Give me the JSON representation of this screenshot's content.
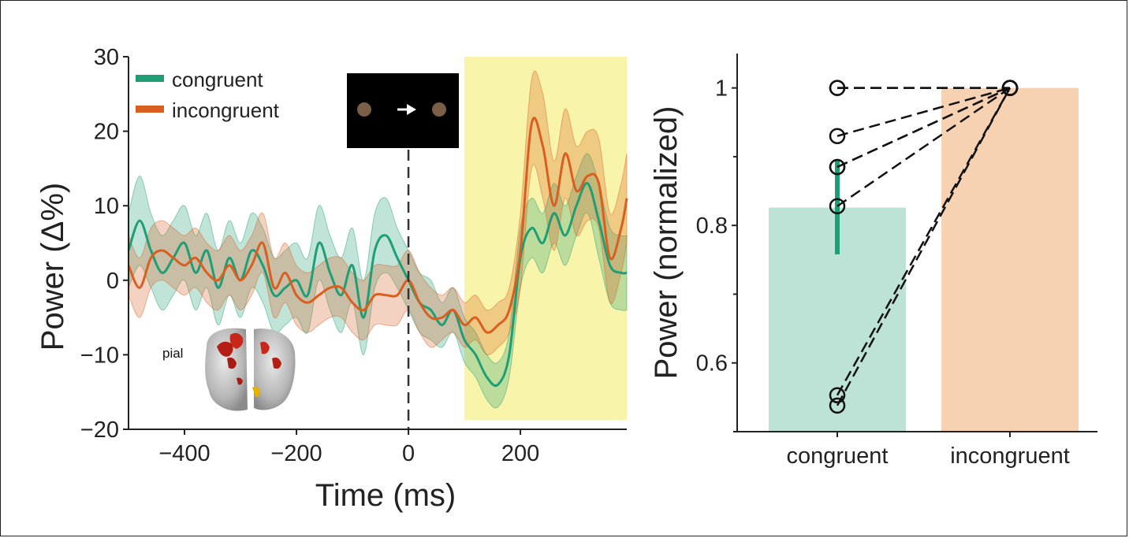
{
  "colors": {
    "congruent": "#1f9e76",
    "incongruent": "#d95f20",
    "congruent_bar": "#bde3d6",
    "incongruent_bar": "#f6d1b2",
    "highlight": "#f8f4aa"
  },
  "chart_data": [
    {
      "type": "line",
      "xlabel": "Time (ms)",
      "ylabel": "Power (Δ%)",
      "xlim": [
        -500,
        390
      ],
      "ylim": [
        -20,
        30
      ],
      "x_ticks": [
        -400,
        -200,
        0,
        200
      ],
      "x_tick_labels": [
        "−400",
        "−200",
        "0",
        "200"
      ],
      "y_ticks": [
        -20,
        -10,
        0,
        10,
        20,
        30
      ],
      "y_tick_labels": [
        "−20",
        "−10",
        "0",
        "10",
        "20",
        "30"
      ],
      "legend": "top-left",
      "shaded_window_ms": [
        100,
        390
      ],
      "stimulus_onset_ms": 0,
      "inset_stimulus_icon": "two-dots-arrow-icon",
      "inset_brain_label": "pial",
      "x": [
        -500,
        -480,
        -460,
        -440,
        -420,
        -400,
        -380,
        -360,
        -340,
        -320,
        -300,
        -280,
        -260,
        -240,
        -220,
        -200,
        -180,
        -160,
        -140,
        -120,
        -100,
        -80,
        -60,
        -40,
        -20,
        0,
        20,
        40,
        60,
        80,
        100,
        120,
        140,
        160,
        180,
        200,
        220,
        240,
        260,
        280,
        300,
        320,
        340,
        360,
        380,
        390
      ],
      "series": [
        {
          "name": "congruent",
          "values": [
            4,
            8,
            4,
            1,
            3,
            5,
            1,
            4,
            -1,
            3,
            0,
            4,
            2,
            -2,
            -1,
            0,
            -2,
            5,
            1,
            -2,
            2,
            -5,
            4,
            6,
            3,
            0,
            -3,
            -4,
            -6,
            -4,
            -8,
            -10,
            -13,
            -14,
            -10,
            3,
            7,
            5,
            9,
            6,
            10,
            13,
            8,
            2,
            1,
            1
          ],
          "ci": [
            5,
            6,
            5,
            5,
            5,
            5,
            5,
            5,
            5,
            5,
            5,
            5,
            5,
            5,
            5,
            5,
            5,
            5,
            5,
            5,
            5,
            5,
            5,
            5,
            4,
            4,
            4,
            4,
            3,
            3,
            3,
            3,
            3,
            3,
            3,
            4,
            4,
            4,
            4,
            4,
            4,
            4,
            5,
            5,
            5,
            5
          ]
        },
        {
          "name": "incongruent",
          "values": [
            2,
            -1,
            3,
            4,
            3,
            2,
            3,
            1,
            0,
            2,
            0,
            2,
            5,
            -1,
            1,
            -2,
            -3,
            -2,
            -1,
            -1,
            -3,
            -4,
            -2,
            -2,
            -2,
            0,
            -3,
            -5,
            -5,
            -4,
            -6,
            -5,
            -7,
            -6,
            -4,
            4,
            21,
            18,
            10,
            17,
            12,
            14,
            13,
            3,
            7,
            11
          ],
          "ci": [
            4,
            4,
            4,
            4,
            4,
            4,
            4,
            4,
            4,
            4,
            4,
            4,
            4,
            4,
            4,
            4,
            4,
            4,
            4,
            4,
            4,
            4,
            4,
            4,
            4,
            4,
            4,
            4,
            3,
            3,
            3,
            3,
            3,
            3,
            3,
            5,
            6,
            7,
            6,
            6,
            6,
            6,
            6,
            6,
            6,
            6
          ]
        }
      ]
    },
    {
      "type": "bar",
      "ylabel": "Power (normalized)",
      "categories": [
        "congruent",
        "incongruent"
      ],
      "values": [
        0.826,
        1.0
      ],
      "error": [
        0.068,
        0
      ],
      "ylim": [
        0.5,
        1.05
      ],
      "y_ticks": [
        0.6,
        0.8,
        1.0
      ],
      "y_tick_labels": [
        "0.6",
        "0.8",
        "1"
      ],
      "y_minor_ticks": [
        0.5,
        0.7,
        0.9
      ],
      "paired_points": {
        "congruent": [
          1.0,
          1.0,
          0.93,
          0.885,
          0.885,
          0.828,
          0.553,
          0.538
        ],
        "incongruent": [
          1.0,
          1.0,
          1.0,
          1.0,
          1.0,
          1.0,
          1.0,
          1.0
        ]
      }
    }
  ]
}
